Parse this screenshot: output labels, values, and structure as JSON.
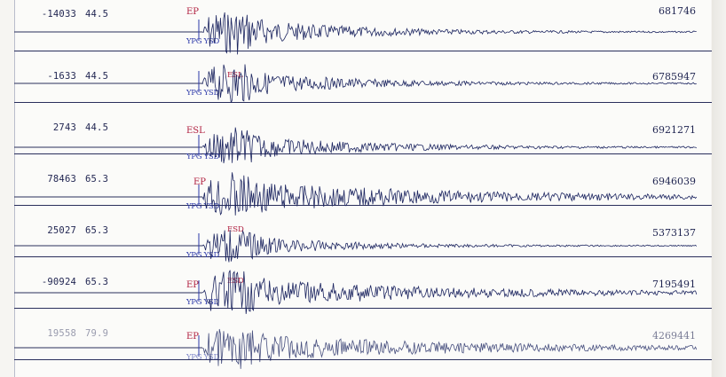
{
  "traces": [
    {
      "offset": "-14033",
      "gain": "44.5",
      "pick_e": "EP",
      "pick_s": "",
      "station": "YPG YSD",
      "amp": "681746",
      "energy": 1.0,
      "decay": 0.9,
      "faint": false
    },
    {
      "offset": "-1633",
      "gain": "44.5",
      "pick_e": "",
      "pick_s": "ESL",
      "station": "YPG YSD",
      "amp": "6785947",
      "energy": 0.9,
      "decay": 0.9,
      "faint": false
    },
    {
      "offset": "2743",
      "gain": "44.5",
      "pick_e": "ESL",
      "pick_s": "",
      "station": "YPG YSD",
      "amp": "6921271",
      "energy": 0.85,
      "decay": 0.85,
      "faint": false
    },
    {
      "offset": "78463",
      "gain": "65.3",
      "pick_e": "EP",
      "pick_s": "",
      "station": "YPG YSD",
      "amp": "6946039",
      "energy": 1.0,
      "decay": 0.45,
      "faint": false
    },
    {
      "offset": "25027",
      "gain": "65.3",
      "pick_e": "",
      "pick_s": "ESD",
      "station": "YPG YSD",
      "amp": "5373137",
      "energy": 0.75,
      "decay": 0.95,
      "faint": false
    },
    {
      "offset": "-90924",
      "gain": "65.3",
      "pick_e": "EP",
      "pick_s": "ESD",
      "station": "YPG YSD",
      "amp": "7195491",
      "energy": 0.95,
      "decay": 0.5,
      "faint": false
    },
    {
      "offset": "19558",
      "gain": "79.9",
      "pick_e": "EP",
      "pick_s": "",
      "station": "YPG YSD",
      "amp": "4269441",
      "energy": 0.9,
      "decay": 0.45,
      "faint": true
    }
  ],
  "colors": {
    "trace": "#1c2560",
    "pick": "#b02040",
    "station": "#2a37a8",
    "baseline": "#2a2f5c"
  }
}
